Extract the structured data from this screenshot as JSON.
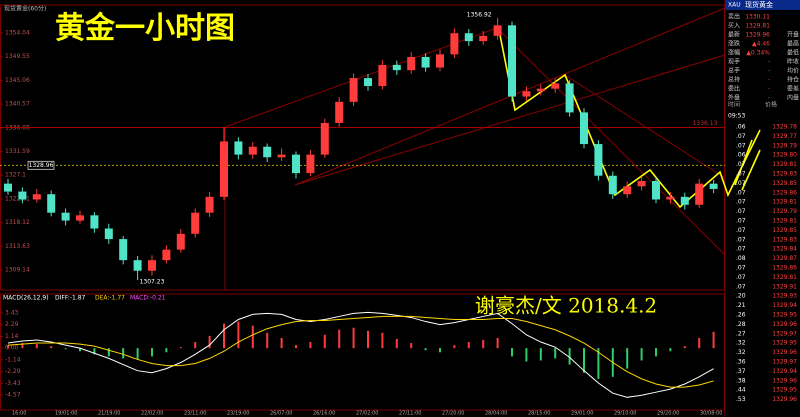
{
  "chart_data": [
    {
      "type": "candlestick",
      "title": "黄金一小时图",
      "subtitle": "现货黄金(60分)",
      "signature": "谢豪杰/文  2018.4.2",
      "up_color": "#ff3b3b",
      "down_color": "#4fe3c8",
      "candles": [
        [
          1325.5,
          1326.4,
          1323.4,
          1324
        ],
        [
          1324,
          1324.8,
          1321.8,
          1322.5
        ],
        [
          1322.5,
          1324.5,
          1321.9,
          1323.5
        ],
        [
          1323.5,
          1324.2,
          1319.3,
          1320
        ],
        [
          1320,
          1320.8,
          1317.6,
          1318.5
        ],
        [
          1318.5,
          1320.4,
          1317.9,
          1319.5
        ],
        [
          1319.5,
          1320.1,
          1316.2,
          1317
        ],
        [
          1317,
          1317.9,
          1314.1,
          1315
        ],
        [
          1315,
          1315.6,
          1310.2,
          1311
        ],
        [
          1311,
          1311.8,
          1307.23,
          1309
        ],
        [
          1309,
          1311.9,
          1308.1,
          1311
        ],
        [
          1311,
          1313.8,
          1310.4,
          1313
        ],
        [
          1313,
          1316.9,
          1312.4,
          1316
        ],
        [
          1316,
          1320.8,
          1315.3,
          1320
        ],
        [
          1320,
          1323.9,
          1319.2,
          1323
        ],
        [
          1323,
          1336.2,
          1322.4,
          1333.5
        ],
        [
          1333.5,
          1334.3,
          1330.1,
          1331
        ],
        [
          1331,
          1333.4,
          1330.2,
          1332.5
        ],
        [
          1332.5,
          1333.1,
          1329.6,
          1330.5
        ],
        [
          1330.5,
          1332.2,
          1329.8,
          1331
        ],
        [
          1331,
          1331.6,
          1326.5,
          1327.5
        ],
        [
          1327.5,
          1331.9,
          1326.9,
          1331
        ],
        [
          1331,
          1337.8,
          1330.4,
          1337
        ],
        [
          1337,
          1341.9,
          1336.3,
          1341
        ],
        [
          1341,
          1346.4,
          1340.2,
          1345.5
        ],
        [
          1345.5,
          1346.3,
          1343.1,
          1344
        ],
        [
          1344,
          1348.9,
          1343.4,
          1348
        ],
        [
          1348,
          1348.8,
          1346.1,
          1347
        ],
        [
          1347,
          1350.4,
          1346.3,
          1349.5
        ],
        [
          1349.5,
          1350.2,
          1346.7,
          1347.5
        ],
        [
          1347.5,
          1350.9,
          1346.8,
          1350
        ],
        [
          1350,
          1354.9,
          1349.3,
          1354
        ],
        [
          1354,
          1354.8,
          1351.6,
          1352.5
        ],
        [
          1352.5,
          1354.4,
          1351.8,
          1353.5
        ],
        [
          1353.5,
          1356.92,
          1352.8,
          1355.5
        ],
        [
          1355.5,
          1356.2,
          1341.1,
          1342
        ],
        [
          1342,
          1343.9,
          1341.2,
          1343
        ],
        [
          1343,
          1344.3,
          1342.2,
          1343.5
        ],
        [
          1343.5,
          1345.4,
          1342.7,
          1344.5
        ],
        [
          1344.5,
          1345.1,
          1338.2,
          1339
        ],
        [
          1339,
          1339.8,
          1332.2,
          1333
        ],
        [
          1333,
          1333.7,
          1326.1,
          1327
        ],
        [
          1327,
          1327.8,
          1322.6,
          1323.5
        ],
        [
          1323.5,
          1325.9,
          1322.8,
          1325
        ],
        [
          1325,
          1326.9,
          1324.2,
          1326
        ],
        [
          1326,
          1326.7,
          1321.8,
          1322.5
        ],
        [
          1322.5,
          1323.9,
          1321.7,
          1323
        ],
        [
          1323,
          1323.8,
          1320.6,
          1321.5
        ],
        [
          1321.5,
          1326.4,
          1320.9,
          1325.5
        ],
        [
          1325.5,
          1326.2,
          1323.7,
          1324.5
        ]
      ],
      "ylim": [
        1305.35,
        1359.35
      ],
      "yticks": [
        1354.04,
        1349.55,
        1345.06,
        1340.57,
        1336.08,
        1331.59,
        1327.1,
        1322.61,
        1318.12,
        1313.63,
        1309.14
      ],
      "high_label": 1356.92,
      "low_label": 1307.23,
      "resistance": 1336.13,
      "cursor_price": 1328.96,
      "time_labels": [
        "16:00",
        "19/01:00",
        "21/19:00",
        "22/02:00",
        "23/11:00",
        "23/19:00",
        "26/07:00",
        "26/16:00",
        "27/02:00",
        "27/11:00",
        "27/20:00",
        "28/04:00",
        "28/15:00",
        "29/01:00",
        "29/10:00",
        "29/20:00",
        "30/08:00"
      ]
    },
    {
      "type": "macd",
      "name": "MACD(26,12,9)",
      "diff_text": "DIFF:-1.87",
      "dea_text": "DEA:-1.77",
      "macd_text": "MACD:-0.21",
      "ylim": [
        -6.04,
        4.9
      ],
      "yticks": [
        3.43,
        2.29,
        1.14,
        {
          "value": 0,
          "label": "0.00"
        },
        -1.14,
        -2.29,
        -3.43,
        -4.57
      ],
      "histogram": [
        0.3,
        0.5,
        0.4,
        0.2,
        -0.1,
        -0.3,
        -0.6,
        -0.8,
        -1.0,
        -1.1,
        -0.8,
        -0.4,
        0.1,
        0.6,
        1.2,
        2.4,
        2.6,
        2.2,
        1.5,
        1.0,
        0.3,
        0.6,
        1.3,
        1.8,
        2.0,
        1.7,
        1.5,
        0.9,
        0.5,
        -0.2,
        -0.4,
        0.3,
        0.6,
        0.8,
        1.0,
        -0.8,
        -1.3,
        -1.2,
        -1.0,
        -1.6,
        -2.4,
        -3.0,
        -2.8,
        -2.0,
        -1.2,
        -0.8,
        -0.3,
        0.2,
        1.0,
        1.6
      ],
      "series": [
        {
          "name": "DIFF",
          "color": "#ffffff",
          "values": [
            0.5,
            0.7,
            0.8,
            0.6,
            0.3,
            0,
            -0.5,
            -1.0,
            -1.6,
            -2.2,
            -2.4,
            -2.0,
            -1.4,
            -0.6,
            0.3,
            1.8,
            2.8,
            3.3,
            3.4,
            3.3,
            2.8,
            2.6,
            2.8,
            3.1,
            3.4,
            3.5,
            3.4,
            3.2,
            3.0,
            2.6,
            2.3,
            2.5,
            2.8,
            3.1,
            3.4,
            2.4,
            1.3,
            0.6,
            0.1,
            -0.9,
            -2.2,
            -3.4,
            -4.4,
            -4.8,
            -4.6,
            -4.3,
            -4.0,
            -3.5,
            -2.8,
            -2.0
          ]
        },
        {
          "name": "DEA",
          "color": "#ffd700",
          "values": [
            0.3,
            0.4,
            0.5,
            0.5,
            0.5,
            0.4,
            0.2,
            -0.2,
            -0.6,
            -1.1,
            -1.5,
            -1.7,
            -1.7,
            -1.5,
            -1.0,
            -0.3,
            0.6,
            1.3,
            1.9,
            2.3,
            2.6,
            2.7,
            2.7,
            2.8,
            2.9,
            3.0,
            3.1,
            3.1,
            3.1,
            3.0,
            2.9,
            2.8,
            2.8,
            2.8,
            2.9,
            2.9,
            2.6,
            2.2,
            1.8,
            1.2,
            0.5,
            -0.4,
            -1.4,
            -2.3,
            -3.0,
            -3.5,
            -3.8,
            -3.8,
            -3.6,
            -3.2
          ]
        }
      ]
    }
  ],
  "quote_panel": {
    "code": "XAU",
    "name": "现货黄金",
    "left_rows": [
      [
        "卖出",
        "1330.11"
      ],
      [
        "买入",
        "1329.81"
      ],
      [
        "最新",
        "1329.96"
      ],
      [
        "涨跌",
        "▲4.46"
      ],
      [
        "涨幅",
        "▲0.34%"
      ],
      [
        "现手",
        "-"
      ],
      [
        "总手",
        "-"
      ],
      [
        "总持",
        "-"
      ],
      [
        "委比",
        "-"
      ],
      [
        "外盘",
        "-"
      ]
    ],
    "right_labels": [
      "开盘",
      "最高",
      "最低",
      "昨收",
      "均价",
      "持仓",
      "委差",
      "内盘"
    ],
    "trade_header": [
      "时间",
      "价格"
    ],
    "time": "09:53",
    "trades": [
      [
        ".06",
        "1329.78"
      ],
      [
        ".07",
        "1329.77"
      ],
      [
        ".07",
        "1329.79"
      ],
      [
        ".06",
        "1329.80"
      ],
      [
        ".07",
        "1329.81"
      ],
      [
        ".07",
        "1329.83"
      ],
      [
        ".07",
        "1329.85"
      ],
      [
        ".07",
        "1329.86"
      ],
      [
        ".07",
        "1329.81"
      ],
      [
        ".07",
        "1329.79"
      ],
      [
        ".07",
        "1329.81"
      ],
      [
        ".07",
        "1329.85"
      ],
      [
        ".07",
        "1329.83"
      ],
      [
        ".07",
        "1329.84"
      ],
      [
        ".08",
        "1329.87"
      ],
      [
        ".07",
        "1329.86"
      ],
      [
        ".07",
        "1329.81"
      ],
      [
        ".07",
        "1329.91"
      ],
      [
        ".20",
        "1329.93"
      ],
      [
        ".21",
        "1329.94"
      ],
      [
        ".26",
        "1329.95"
      ],
      [
        ".28",
        "1329.96"
      ],
      [
        ".27",
        "1329.97"
      ],
      [
        ".32",
        "1329.95"
      ],
      [
        ".32",
        "1329.96"
      ],
      [
        ".36",
        "1329.97"
      ],
      [
        ".37",
        "1329.94"
      ],
      [
        ".38",
        "1329.96"
      ],
      [
        ".44",
        "1329.95"
      ],
      [
        ".53",
        "1329.96"
      ]
    ]
  }
}
